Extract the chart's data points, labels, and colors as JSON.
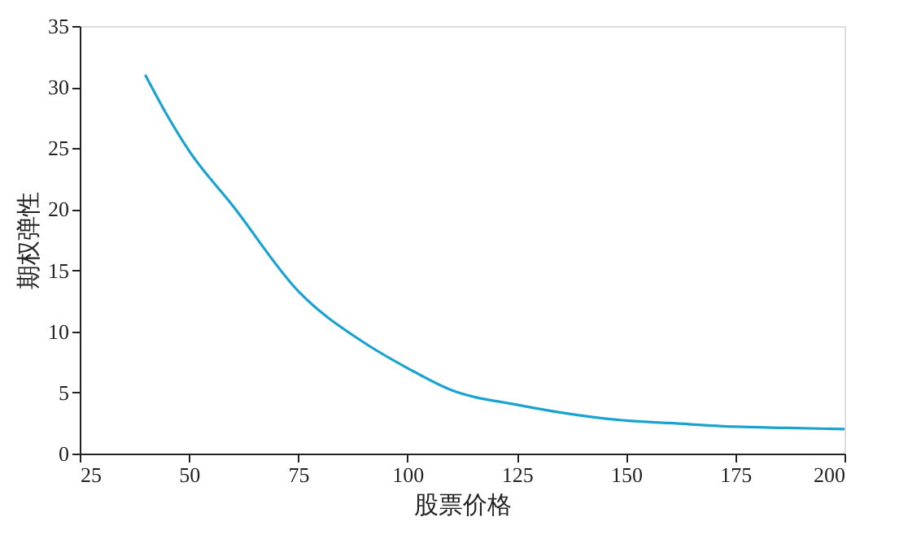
{
  "chart_data": {
    "type": "line",
    "xlabel": "股票价格",
    "ylabel": "期权弹性",
    "x": [
      40,
      45,
      50,
      60,
      75,
      90,
      100,
      110,
      125,
      140,
      150,
      160,
      175,
      187,
      200
    ],
    "series": [
      {
        "color": "#1aa3d0",
        "values": [
          31,
          27.7,
          24.8,
          20.3,
          13.3,
          9.1,
          7.0,
          5.2,
          4.0,
          3.1,
          2.7,
          2.5,
          2.2,
          2.1,
          2.0
        ]
      }
    ],
    "xlim": [
      25,
      200
    ],
    "xticks": [
      25,
      50,
      75,
      100,
      125,
      150,
      175,
      200
    ],
    "ylim": [
      0,
      35
    ],
    "yticks": [
      0,
      5,
      10,
      15,
      20,
      25,
      30,
      35
    ],
    "grid": false,
    "marker": "none",
    "line_style": "solid"
  }
}
